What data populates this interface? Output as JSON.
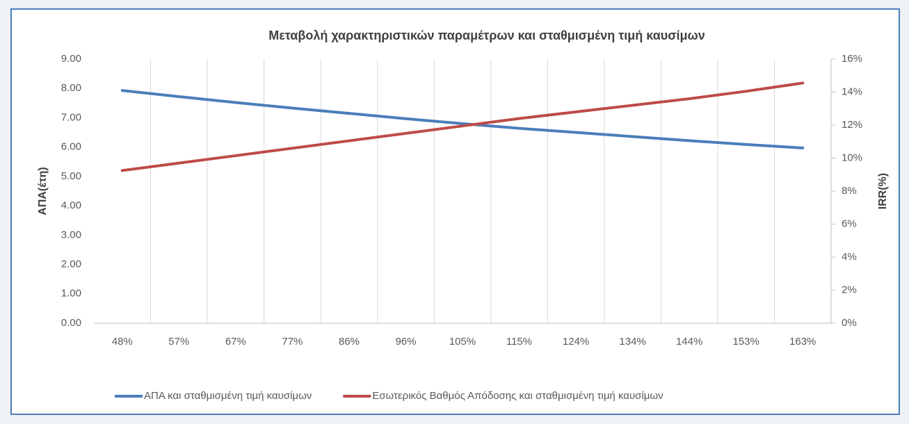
{
  "chart_data": {
    "type": "line",
    "title": "Μεταβολή χαρακτηριστικών παραμέτρων και σταθμισμένη τιμή καυσίμων",
    "ylabel": "ΑΠΑ(έτη)",
    "y2label": "IRR(%)",
    "categories": [
      "48%",
      "57%",
      "67%",
      "77%",
      "86%",
      "96%",
      "105%",
      "115%",
      "124%",
      "134%",
      "144%",
      "153%",
      "163%"
    ],
    "series": [
      {
        "name": "ΑΠΑ και σταθμισμένη τιμή καυσίμων",
        "color": "#4a7ebb",
        "values": [
          7.93,
          7.72,
          7.52,
          7.33,
          7.15,
          6.97,
          6.8,
          6.64,
          6.5,
          6.36,
          6.22,
          6.09,
          5.97
        ]
      },
      {
        "name": "Εσωτερικός Βαθμός Απόδοσης και σταθμισμένη τιμή καυσίμων",
        "color": "#be4b48",
        "axis": "y2",
        "values": [
          9.25,
          9.7,
          10.15,
          10.6,
          11.05,
          11.5,
          11.95,
          12.4,
          12.8,
          13.2,
          13.6,
          14.05,
          14.55
        ]
      }
    ],
    "ylim": [
      0,
      9
    ],
    "yticks": [
      {
        "value": 0,
        "label": "0.00"
      },
      {
        "value": 1,
        "label": "1.00"
      },
      {
        "value": 2,
        "label": "2.00"
      },
      {
        "value": 3,
        "label": "3.00"
      },
      {
        "value": 4,
        "label": "4.00"
      },
      {
        "value": 5,
        "label": "5.00"
      },
      {
        "value": 6,
        "label": "6.00"
      },
      {
        "value": 7,
        "label": "7.00"
      },
      {
        "value": 8,
        "label": "8.00"
      },
      {
        "value": 9,
        "label": "9.00"
      }
    ],
    "y2lim": [
      0,
      16
    ],
    "y2ticks": [
      {
        "value": 0,
        "label": "0%"
      },
      {
        "value": 2,
        "label": "2%"
      },
      {
        "value": 4,
        "label": "4%"
      },
      {
        "value": 6,
        "label": "6%"
      },
      {
        "value": 8,
        "label": "8%"
      },
      {
        "value": 10,
        "label": "10%"
      },
      {
        "value": 12,
        "label": "12%"
      },
      {
        "value": 14,
        "label": "14%"
      },
      {
        "value": 16,
        "label": "16%"
      }
    ],
    "legend": "bottom"
  }
}
